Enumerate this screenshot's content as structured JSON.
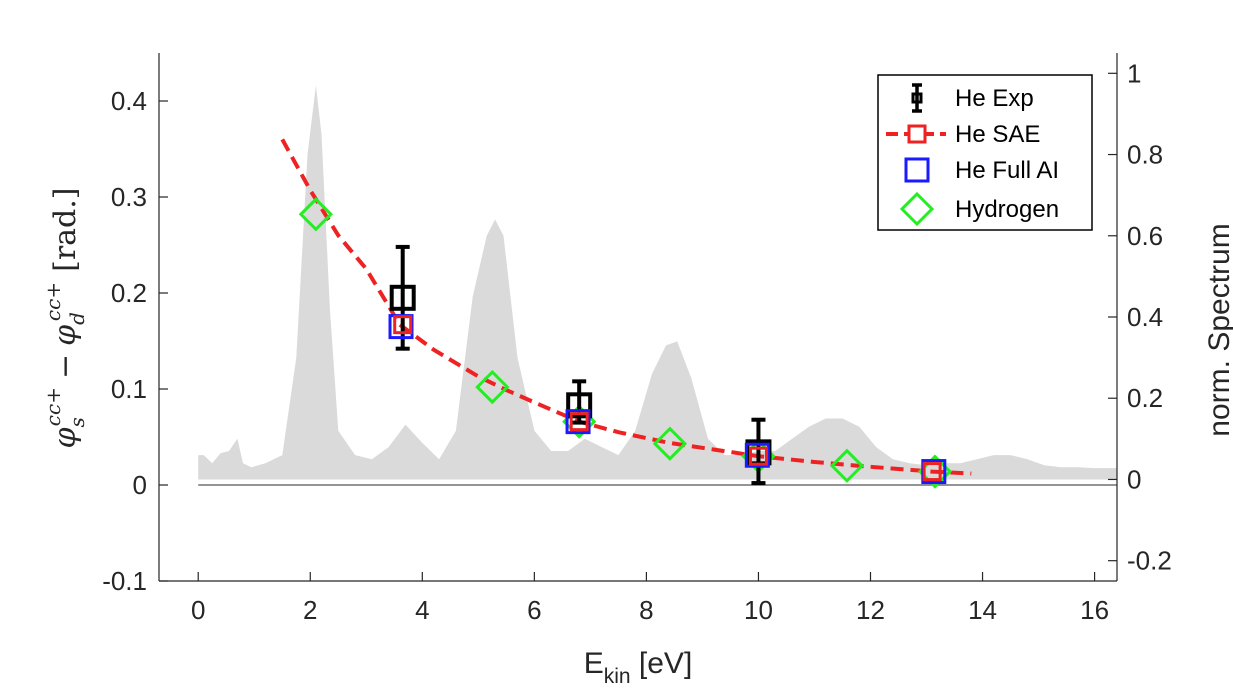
{
  "chart_data": {
    "type": "line",
    "xlabel": {
      "main": "E",
      "sub": "kin",
      "unit": " [eV]"
    },
    "ylabel_left": {
      "t1": "φ",
      "t1_sub": "s",
      "t1_sup": "cc+",
      "op": "−",
      "t2": "φ",
      "t2_sub": "d",
      "t2_sup": "cc+",
      "unit": "[rad.]"
    },
    "ylabel_right": "norm. Spectrum",
    "xlim": [
      -0.7,
      16.4
    ],
    "ylim_left": [
      -0.1,
      0.45
    ],
    "ylim_right": [
      -0.25,
      1.05
    ],
    "xticks": [
      "0",
      "2",
      "4",
      "6",
      "8",
      "10",
      "12",
      "14",
      "16"
    ],
    "yticks_left": [
      "-0.1",
      "0",
      "0.1",
      "0.2",
      "0.3",
      "0.4"
    ],
    "yticks_right": [
      "-0.2",
      "0",
      "0.2",
      "0.4",
      "0.6",
      "0.8",
      "1"
    ],
    "legend_position": "top-right",
    "series": [
      {
        "name": "He Exp",
        "style": "black-square-errorbar",
        "color": "#000000",
        "x": [
          3.65,
          6.8,
          10.0
        ],
        "y": [
          0.195,
          0.083,
          0.034
        ],
        "yerr_low": [
          0.053,
          0.018,
          0.032
        ],
        "yerr_high": [
          0.053,
          0.025,
          0.034
        ]
      },
      {
        "name": "He SAE",
        "style": "red-dashed-square",
        "color": "#ee2222",
        "curve_x": [
          1.5,
          2.0,
          2.5,
          3.0,
          3.6,
          4.2,
          5.0,
          5.5,
          6.0,
          6.8,
          7.5,
          8.4,
          9.2,
          10.0,
          11.0,
          12.0,
          13.1,
          13.8
        ],
        "curve_y": [
          0.36,
          0.307,
          0.26,
          0.225,
          0.167,
          0.141,
          0.113,
          0.099,
          0.086,
          0.066,
          0.055,
          0.044,
          0.037,
          0.03,
          0.024,
          0.019,
          0.014,
          0.012
        ],
        "x": [
          3.65,
          6.8,
          10.0,
          13.1
        ],
        "y": [
          0.167,
          0.066,
          0.03,
          0.014
        ]
      },
      {
        "name": "He Full AI",
        "style": "blue-square",
        "color": "#1a1aff",
        "x": [
          3.62,
          6.78,
          9.98,
          13.13
        ],
        "y": [
          0.165,
          0.066,
          0.031,
          0.014
        ]
      },
      {
        "name": "Hydrogen",
        "style": "green-diamond",
        "color": "#22ee22",
        "x": [
          2.1,
          5.25,
          6.8,
          8.42,
          10.0,
          11.58,
          13.15
        ],
        "y": [
          0.282,
          0.102,
          0.066,
          0.043,
          0.03,
          0.02,
          0.014
        ]
      }
    ],
    "spectrum": {
      "name": "norm. Spectrum",
      "axis": "right",
      "color": "#dadada",
      "x": [
        0,
        0.1,
        0.25,
        0.4,
        0.55,
        0.7,
        0.8,
        0.95,
        1.2,
        1.5,
        1.75,
        1.95,
        2.1,
        2.2,
        2.35,
        2.5,
        2.8,
        3.1,
        3.4,
        3.7,
        4.0,
        4.3,
        4.6,
        4.9,
        5.15,
        5.3,
        5.45,
        5.7,
        6.0,
        6.3,
        6.6,
        6.9,
        7.2,
        7.5,
        7.8,
        8.1,
        8.35,
        8.55,
        8.8,
        9.1,
        9.4,
        9.7,
        10.0,
        10.3,
        10.6,
        10.9,
        11.2,
        11.5,
        11.8,
        12.1,
        12.4,
        12.7,
        13.0,
        13.3,
        13.6,
        13.9,
        14.2,
        14.5,
        14.8,
        15.1,
        15.4,
        15.7,
        16.0,
        16.4
      ],
      "y": [
        0.06,
        0.06,
        0.04,
        0.065,
        0.07,
        0.1,
        0.04,
        0.03,
        0.04,
        0.06,
        0.3,
        0.8,
        0.97,
        0.85,
        0.42,
        0.12,
        0.06,
        0.05,
        0.08,
        0.135,
        0.09,
        0.05,
        0.12,
        0.45,
        0.6,
        0.64,
        0.6,
        0.3,
        0.12,
        0.07,
        0.07,
        0.1,
        0.08,
        0.06,
        0.12,
        0.26,
        0.33,
        0.34,
        0.25,
        0.1,
        0.06,
        0.06,
        0.07,
        0.07,
        0.1,
        0.13,
        0.15,
        0.15,
        0.13,
        0.08,
        0.05,
        0.04,
        0.035,
        0.04,
        0.04,
        0.05,
        0.06,
        0.06,
        0.05,
        0.035,
        0.03,
        0.03,
        0.028,
        0.028
      ]
    }
  }
}
